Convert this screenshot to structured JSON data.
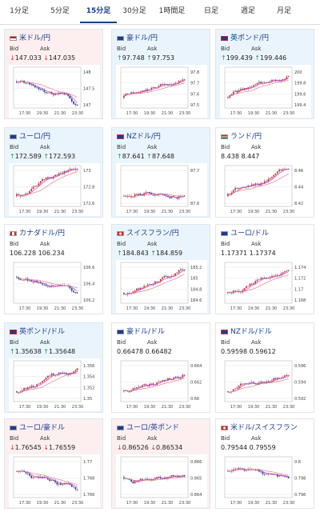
{
  "tabs": [
    {
      "label": "1分足"
    },
    {
      "label": "5分足"
    },
    {
      "label": "15分足",
      "active": true
    },
    {
      "label": "30分足"
    },
    {
      "label": "1時間足"
    },
    {
      "label": "日足"
    },
    {
      "label": "週足"
    },
    {
      "label": "月足"
    }
  ],
  "labels": {
    "bid": "Bid",
    "ask": "Ask"
  },
  "cards": [
    {
      "pair": "米ドル/円",
      "flag": "us",
      "state": "down",
      "bid": "147.033",
      "ask": "147.035",
      "arrow": "↓",
      "yticks": [
        "148",
        "147.5",
        "147"
      ],
      "xticks": [
        "17:30",
        "19:30",
        "21:30",
        "23:30"
      ]
    },
    {
      "pair": "豪ドル/円",
      "flag": "au",
      "state": "up",
      "bid": "97.748",
      "ask": "97.753",
      "arrow": "↑",
      "yticks": [
        "97.8",
        "97.7",
        "97.6",
        "97.5"
      ],
      "xticks": [
        "17:30",
        "19:30",
        "21:30",
        "23:30"
      ]
    },
    {
      "pair": "英ポンド/円",
      "flag": "gb",
      "state": "up",
      "bid": "199.439",
      "ask": "199.446",
      "arrow": "↑",
      "yticks": [
        "200",
        "199.8",
        "199.6",
        "199.4"
      ],
      "xticks": [
        "17:30",
        "19:30",
        "21:30",
        "23:30"
      ]
    },
    {
      "pair": "ユーロ/円",
      "flag": "eu",
      "state": "up",
      "bid": "172.589",
      "ask": "172.593",
      "arrow": "↑",
      "yticks": [
        "173",
        "172.8",
        "172.6"
      ],
      "xticks": [
        "17:30",
        "19:30",
        "21:30",
        "23:30"
      ]
    },
    {
      "pair": "NZドル/円",
      "flag": "nz",
      "state": "up",
      "bid": "87.641",
      "ask": "87.648",
      "arrow": "↑",
      "yticks": [
        "87.7",
        "87.6"
      ],
      "xticks": [
        "17:30",
        "19:30",
        "21:30",
        "23:30"
      ]
    },
    {
      "pair": "ランド/円",
      "flag": "za",
      "state": "flat",
      "bid": "8.438",
      "ask": "8.447",
      "arrow": "",
      "yticks": [
        "8.46",
        "8.44",
        "8.42"
      ],
      "xticks": [
        "17:30",
        "19:30",
        "21:30",
        "23:30"
      ]
    },
    {
      "pair": "カナダドル/円",
      "flag": "ca",
      "state": "flat",
      "bid": "106.228",
      "ask": "106.234",
      "arrow": "",
      "yticks": [
        "106.6",
        "106.4",
        "106.2"
      ],
      "xticks": [
        "17:30",
        "19:30",
        "21:30",
        "23:30"
      ]
    },
    {
      "pair": "スイスフラン/円",
      "flag": "ch",
      "state": "up",
      "bid": "184.843",
      "ask": "184.859",
      "arrow": "↑",
      "yticks": [
        "185.2",
        "185",
        "184.8",
        "184.6"
      ],
      "xticks": [
        "17:30",
        "19:30",
        "21:30",
        "23:30"
      ]
    },
    {
      "pair": "ユーロ/ドル",
      "flag": "eu",
      "state": "flat",
      "bid": "1.17371",
      "ask": "1.17374",
      "arrow": "",
      "yticks": [
        "1.174",
        "1.172",
        "1.17",
        "1.168"
      ],
      "xticks": [
        "17:30",
        "19:30",
        "21:30",
        "23:30"
      ]
    },
    {
      "pair": "英ポンド/ドル",
      "flag": "gb",
      "state": "up",
      "bid": "1.35638",
      "ask": "1.35648",
      "arrow": "↑",
      "yticks": [
        "1.356",
        "1.354",
        "1.352",
        "1.35"
      ],
      "xticks": [
        "17:30",
        "19:30",
        "21:30",
        "23:30"
      ]
    },
    {
      "pair": "豪ドル/ドル",
      "flag": "au",
      "state": "flat",
      "bid": "0.66478",
      "ask": "0.66482",
      "arrow": "",
      "yticks": [
        "0.664",
        "0.662",
        "0.66"
      ],
      "xticks": [
        "17:30",
        "19:30",
        "21:30",
        "23:30"
      ]
    },
    {
      "pair": "NZドル/ドル",
      "flag": "nz",
      "state": "flat",
      "bid": "0.59598",
      "ask": "0.59612",
      "arrow": "",
      "yticks": [
        "0.596",
        "0.594",
        "0.592"
      ],
      "xticks": [
        "17:30",
        "19:30",
        "21:30",
        "23:30"
      ]
    },
    {
      "pair": "ユーロ/豪ドル",
      "flag": "eu",
      "state": "down",
      "bid": "1.76545",
      "ask": "1.76559",
      "arrow": "↓",
      "yticks": [
        "1.77",
        "1.768",
        "1.766"
      ],
      "xticks": [
        "17:30",
        "19:30",
        "21:30",
        "23:30"
      ]
    },
    {
      "pair": "ユーロ/英ポンド",
      "flag": "eu",
      "state": "down",
      "bid": "0.86526",
      "ask": "0.86534",
      "arrow": "↓",
      "yticks": [
        "0.866",
        "0.865",
        "0.864"
      ],
      "xticks": [
        "17:30",
        "19:30",
        "21:30",
        "23:30"
      ]
    },
    {
      "pair": "米ドル/スイスフラン",
      "flag": "ch",
      "state": "flat",
      "bid": "0.79544",
      "ask": "0.79559",
      "arrow": "",
      "yticks": [
        "0.8",
        "0.798",
        "0.796"
      ],
      "xticks": [
        "17:30",
        "19:30",
        "21:30",
        "23:30"
      ]
    }
  ]
}
